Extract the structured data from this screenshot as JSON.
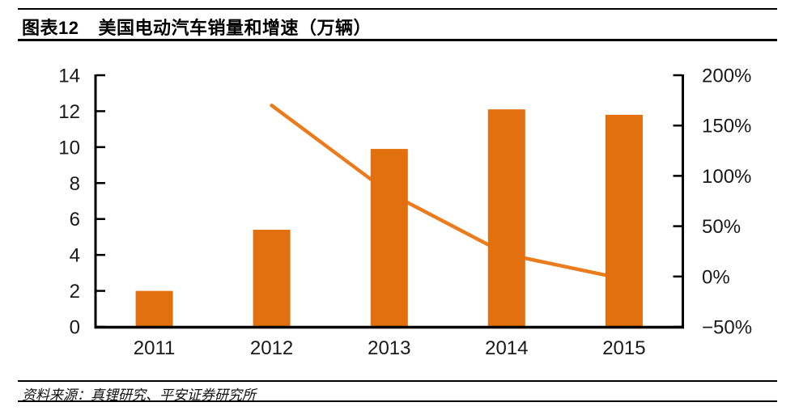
{
  "header": {
    "label": "图表12",
    "title": "美国电动汽车销量和增速（万辆）"
  },
  "footer": {
    "source": "资料来源：真锂研究、平安证券研究所"
  },
  "colors": {
    "bar": "#E2700F",
    "line": "#EB7C1E",
    "axis": "#000000",
    "tick_text": "#1a1a1a"
  },
  "chart_data": {
    "type": "bar",
    "title": "美国电动汽车销量和增速（万辆）",
    "categories": [
      "2011",
      "2012",
      "2013",
      "2014",
      "2015"
    ],
    "series": [
      {
        "name": "销量",
        "type": "bar",
        "axis": "left",
        "values": [
          2.0,
          5.4,
          9.9,
          12.1,
          11.8
        ]
      },
      {
        "name": "增速",
        "type": "line",
        "axis": "right",
        "unit": "%",
        "values": [
          null,
          170,
          83,
          22,
          -2.5
        ]
      }
    ],
    "left_axis": {
      "min": 0,
      "max": 14,
      "ticks": [
        0,
        2,
        4,
        6,
        8,
        10,
        12,
        14
      ],
      "tick_labels": [
        "0",
        "2",
        "4",
        "6",
        "8",
        "10",
        "12",
        "14"
      ]
    },
    "right_axis": {
      "min": -50,
      "max": 200,
      "ticks": [
        -50,
        0,
        50,
        100,
        150,
        200
      ],
      "tick_labels": [
        "−50%",
        "0%",
        "50%",
        "100%",
        "150%",
        "200%"
      ]
    },
    "grid": false,
    "legend": false
  }
}
